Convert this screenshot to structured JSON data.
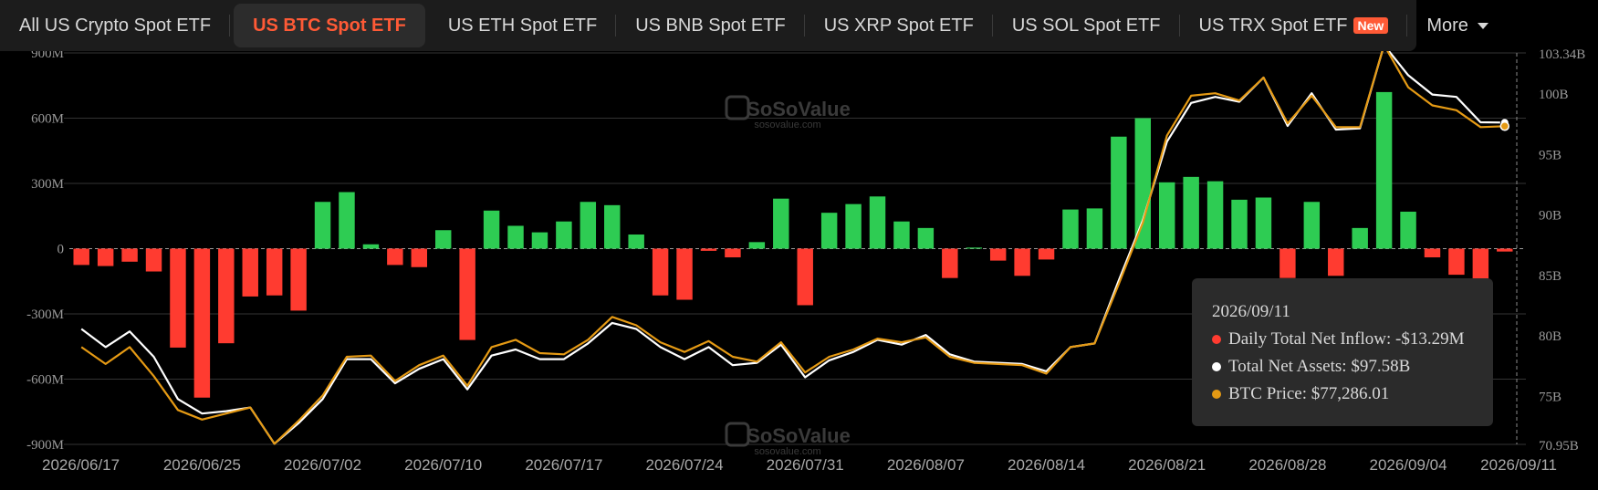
{
  "tabs": [
    {
      "label": "All US Crypto Spot ETF"
    },
    {
      "label": "US BTC Spot ETF",
      "active": true
    },
    {
      "label": "US ETH Spot ETF"
    },
    {
      "label": "US BNB Spot ETF"
    },
    {
      "label": "US XRP Spot ETF"
    },
    {
      "label": "US SOL Spot ETF"
    },
    {
      "label": "US TRX Spot ETF",
      "badge": "New"
    },
    {
      "label": "More"
    }
  ],
  "watermark": {
    "brand": "SoSoValue",
    "url": "sosovalue.com"
  },
  "tooltip": {
    "date": "2026/09/11",
    "inflow_label": "Daily Total Net Inflow:",
    "inflow_value": "-$13.29M",
    "assets_label": "Total Net Assets:",
    "assets_value": "$97.58B",
    "price_label": "BTC Price:",
    "price_value": "$77,286.01"
  },
  "colors": {
    "positive": "#2ecc53",
    "negative": "#ff3b30",
    "assets_line": "#ffffff",
    "price_line": "#e59a14",
    "grid": "#333333",
    "tab_active": "#ff5a36"
  },
  "chart_data": {
    "type": "bar",
    "x_tick_labels": [
      "2026/06/17",
      "2026/06/25",
      "2026/07/02",
      "2026/07/10",
      "2026/07/17",
      "2026/07/24",
      "2026/07/31",
      "2026/08/07",
      "2026/08/14",
      "2026/08/21",
      "2026/08/28",
      "2026/09/04",
      "2026/09/11"
    ],
    "y_left_ticks": [
      "900M",
      "600M",
      "300M",
      "0",
      "-300M",
      "-600M",
      "-900M"
    ],
    "y_left_range": [
      -900,
      900
    ],
    "y_right_ticks": [
      "103.34B",
      "100B",
      "95B",
      "90B",
      "85B",
      "80B",
      "75B",
      "70.95B"
    ],
    "y_right_range": [
      70.95,
      103.34
    ],
    "series": [
      {
        "type": "bar",
        "values": [
          -75,
          -80,
          -60,
          -105,
          -455,
          -685,
          -435,
          -220,
          -215,
          -285,
          215,
          260,
          20,
          -75,
          -85,
          85,
          -420,
          175,
          105,
          75,
          125,
          215,
          200,
          65,
          -215,
          -235,
          -10,
          -40,
          30,
          230,
          -260,
          165,
          205,
          240,
          125,
          95,
          -135,
          5,
          -55,
          -125,
          -50,
          180,
          185,
          515,
          600,
          305,
          330,
          310,
          225,
          235,
          -135,
          215,
          -125,
          95,
          720,
          170,
          -40,
          -120,
          -275,
          -13.29
        ]
      },
      {
        "type": "line",
        "values": [
          80.5,
          79.0,
          80.3,
          78.2,
          74.7,
          73.5,
          73.7,
          74.0,
          71.0,
          72.7,
          74.7,
          78.0,
          78.0,
          76.0,
          77.2,
          78.0,
          75.5,
          78.3,
          78.8,
          78.0,
          78.0,
          79.3,
          81.0,
          80.5,
          79.0,
          78.0,
          79.0,
          77.5,
          77.7,
          79.2,
          76.5,
          77.9,
          78.6,
          79.6,
          79.2,
          80.0,
          78.4,
          77.8,
          77.7,
          77.6,
          77.0,
          79.0,
          79.3,
          84.5,
          89.5,
          96.0,
          99.2,
          99.7,
          99.3,
          101.3,
          97.3,
          100.0,
          97.0,
          97.1,
          104.0,
          101.5,
          99.9,
          99.7,
          97.6,
          97.58
        ]
      },
      {
        "type": "line",
        "values": [
          79.0,
          77.6,
          79.0,
          76.6,
          73.8,
          73.0,
          73.5,
          74.0,
          71.0,
          72.9,
          75.0,
          78.2,
          78.3,
          76.2,
          77.5,
          78.3,
          75.8,
          79.0,
          79.6,
          78.5,
          78.4,
          79.6,
          81.5,
          80.8,
          79.4,
          78.6,
          79.5,
          78.2,
          77.8,
          79.4,
          76.9,
          78.2,
          78.8,
          79.7,
          79.4,
          79.8,
          78.2,
          77.7,
          77.6,
          77.5,
          76.8,
          79.0,
          79.3,
          84.2,
          89.3,
          96.5,
          99.8,
          100.0,
          99.4,
          101.3,
          97.5,
          99.8,
          97.2,
          97.2,
          104.0,
          100.5,
          99.0,
          98.6,
          97.2,
          97.28
        ]
      }
    ]
  }
}
